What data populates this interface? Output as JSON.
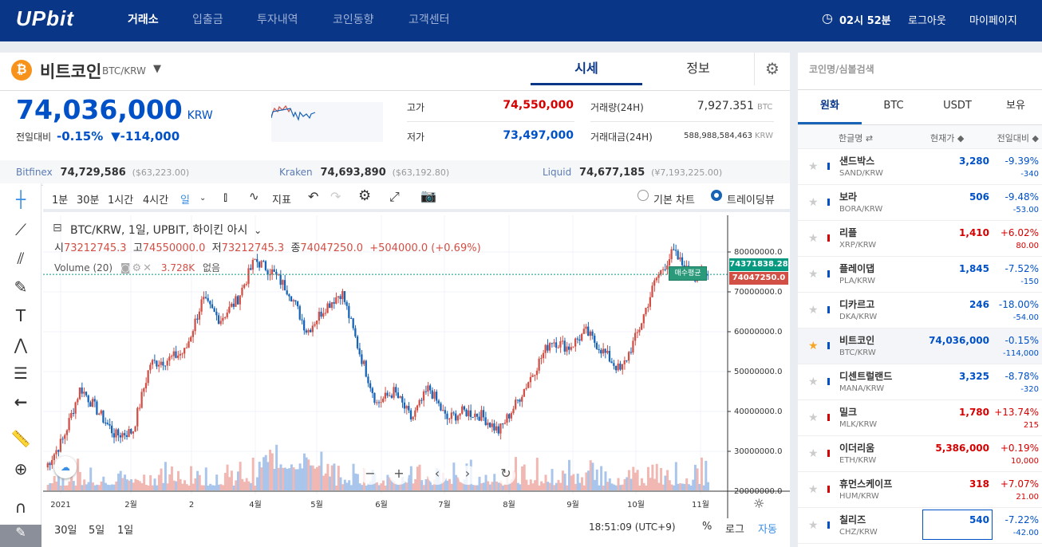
{
  "header": {
    "logo": "UPbit",
    "nav": [
      "거래소",
      "입출금",
      "투자내역",
      "코인동향",
      "고객센터"
    ],
    "time": "02시 52분",
    "logout": "로그아웃",
    "mypage": "마이페이지"
  },
  "coin": {
    "name": "비트코인",
    "pair": "BTC/KRW",
    "price": "74,036,000",
    "unit": "KRW",
    "change_label": "전일대비",
    "change_pct": "-0.15%",
    "change_amt": "▼-114,000",
    "tab_price": "시세",
    "tab_info": "정보",
    "high_label": "고가",
    "high": "74,550,000",
    "low_label": "저가",
    "low": "73,497,000",
    "vol_label": "거래량(24H)",
    "vol": "7,927.351",
    "vol_unit": "BTC",
    "amt_label": "거래대금(24H)",
    "amt": "588,988,584,463",
    "amt_unit": "KRW"
  },
  "exchanges": [
    {
      "name": "Bitfinex",
      "price": "74,729,586",
      "sub": "($63,223.00)"
    },
    {
      "name": "Kraken",
      "price": "74,693,890",
      "sub": "($63,192.80)"
    },
    {
      "name": "Liquid",
      "price": "74,677,185",
      "sub": "(¥7,193,225.00)"
    }
  ],
  "toolbar": {
    "intervals": [
      "1분",
      "30분",
      "1시간",
      "4시간",
      "일"
    ],
    "indicator": "지표",
    "basic_chart": "기본 차트",
    "tradingview": "트레이딩뷰"
  },
  "chart": {
    "legend_title": "BTC/KRW, 1일, UPBIT, 하이킨 아시",
    "o_label": "시",
    "o": "73212745.3",
    "h_label": "고",
    "h": "74550000.0",
    "l_label": "저",
    "l": "73212745.3",
    "c_label": "종",
    "c": "74047250.0",
    "chg": "+504000.0 (+0.69%)",
    "volume_label": "Volume (20)",
    "volume_val": "3.728K",
    "volume_none": "없음",
    "avg_tag": "74371838.28",
    "last_tag": "74047250.0",
    "buy_avg": "매수평균",
    "y_ticks": [
      "80000000.0",
      "70000000.0",
      "60000000.0",
      "50000000.0",
      "40000000.0",
      "30000000.0",
      "20000000.0"
    ],
    "x_ticks": [
      "2021",
      "2월",
      "2",
      "4월",
      "5월",
      "6월",
      "7월",
      "8월",
      "9월",
      "10월",
      "11월"
    ],
    "ranges": [
      "30일",
      "5일",
      "1일"
    ],
    "clock": "18:51:09 (UTC+9)",
    "pct": "%",
    "log": "로그",
    "auto": "자동"
  },
  "chart_data": {
    "type": "candlestick",
    "unit": "KRW (millions)",
    "ylim": [
      20,
      85
    ],
    "path": [
      26,
      33,
      46,
      40,
      34,
      35,
      52,
      53,
      55,
      68,
      63,
      68,
      78,
      75,
      70,
      60,
      66,
      70,
      55,
      42,
      45,
      38,
      46,
      38,
      40,
      39,
      35,
      42,
      50,
      58,
      56,
      60,
      55,
      50,
      60,
      73,
      80,
      74,
      74
    ]
  },
  "side": {
    "search": "코인명/심볼검색",
    "tabs": [
      "원화",
      "BTC",
      "USDT",
      "보유"
    ],
    "cols": [
      "한글명 ⇄",
      "현재가 ◆",
      "전일대비 ◆"
    ],
    "rows": [
      {
        "name": "샌드박스",
        "sym": "SAND/KRW",
        "price": "3,280",
        "pct": "-9.39%",
        "amt": "-340",
        "up": false,
        "fav": false
      },
      {
        "name": "보라",
        "sym": "BORA/KRW",
        "price": "506",
        "pct": "-9.48%",
        "amt": "-53.00",
        "up": false,
        "fav": false
      },
      {
        "name": "리플",
        "sym": "XRP/KRW",
        "price": "1,410",
        "pct": "+6.02%",
        "amt": "80.00",
        "up": true,
        "fav": false
      },
      {
        "name": "플레이댑",
        "sym": "PLA/KRW",
        "price": "1,845",
        "pct": "-7.52%",
        "amt": "-150",
        "up": false,
        "fav": false
      },
      {
        "name": "디카르고",
        "sym": "DKA/KRW",
        "price": "246",
        "pct": "-18.00%",
        "amt": "-54.00",
        "up": false,
        "fav": false
      },
      {
        "name": "비트코인",
        "sym": "BTC/KRW",
        "price": "74,036,000",
        "pct": "-0.15%",
        "amt": "-114,000",
        "up": false,
        "fav": true
      },
      {
        "name": "디센트럴랜드",
        "sym": "MANA/KRW",
        "price": "3,325",
        "pct": "-8.78%",
        "amt": "-320",
        "up": false,
        "fav": false
      },
      {
        "name": "밀크",
        "sym": "MLK/KRW",
        "price": "1,780",
        "pct": "+13.74%",
        "amt": "215",
        "up": true,
        "fav": false
      },
      {
        "name": "이더리움",
        "sym": "ETH/KRW",
        "price": "5,386,000",
        "pct": "+0.19%",
        "amt": "10,000",
        "up": true,
        "fav": false
      },
      {
        "name": "휴먼스케이프",
        "sym": "HUM/KRW",
        "price": "318",
        "pct": "+7.07%",
        "amt": "21.00",
        "up": true,
        "fav": false
      },
      {
        "name": "칠리즈",
        "sym": "CHZ/KRW",
        "price": "540",
        "pct": "-7.22%",
        "amt": "-42.00",
        "up": false,
        "fav": false
      }
    ]
  }
}
